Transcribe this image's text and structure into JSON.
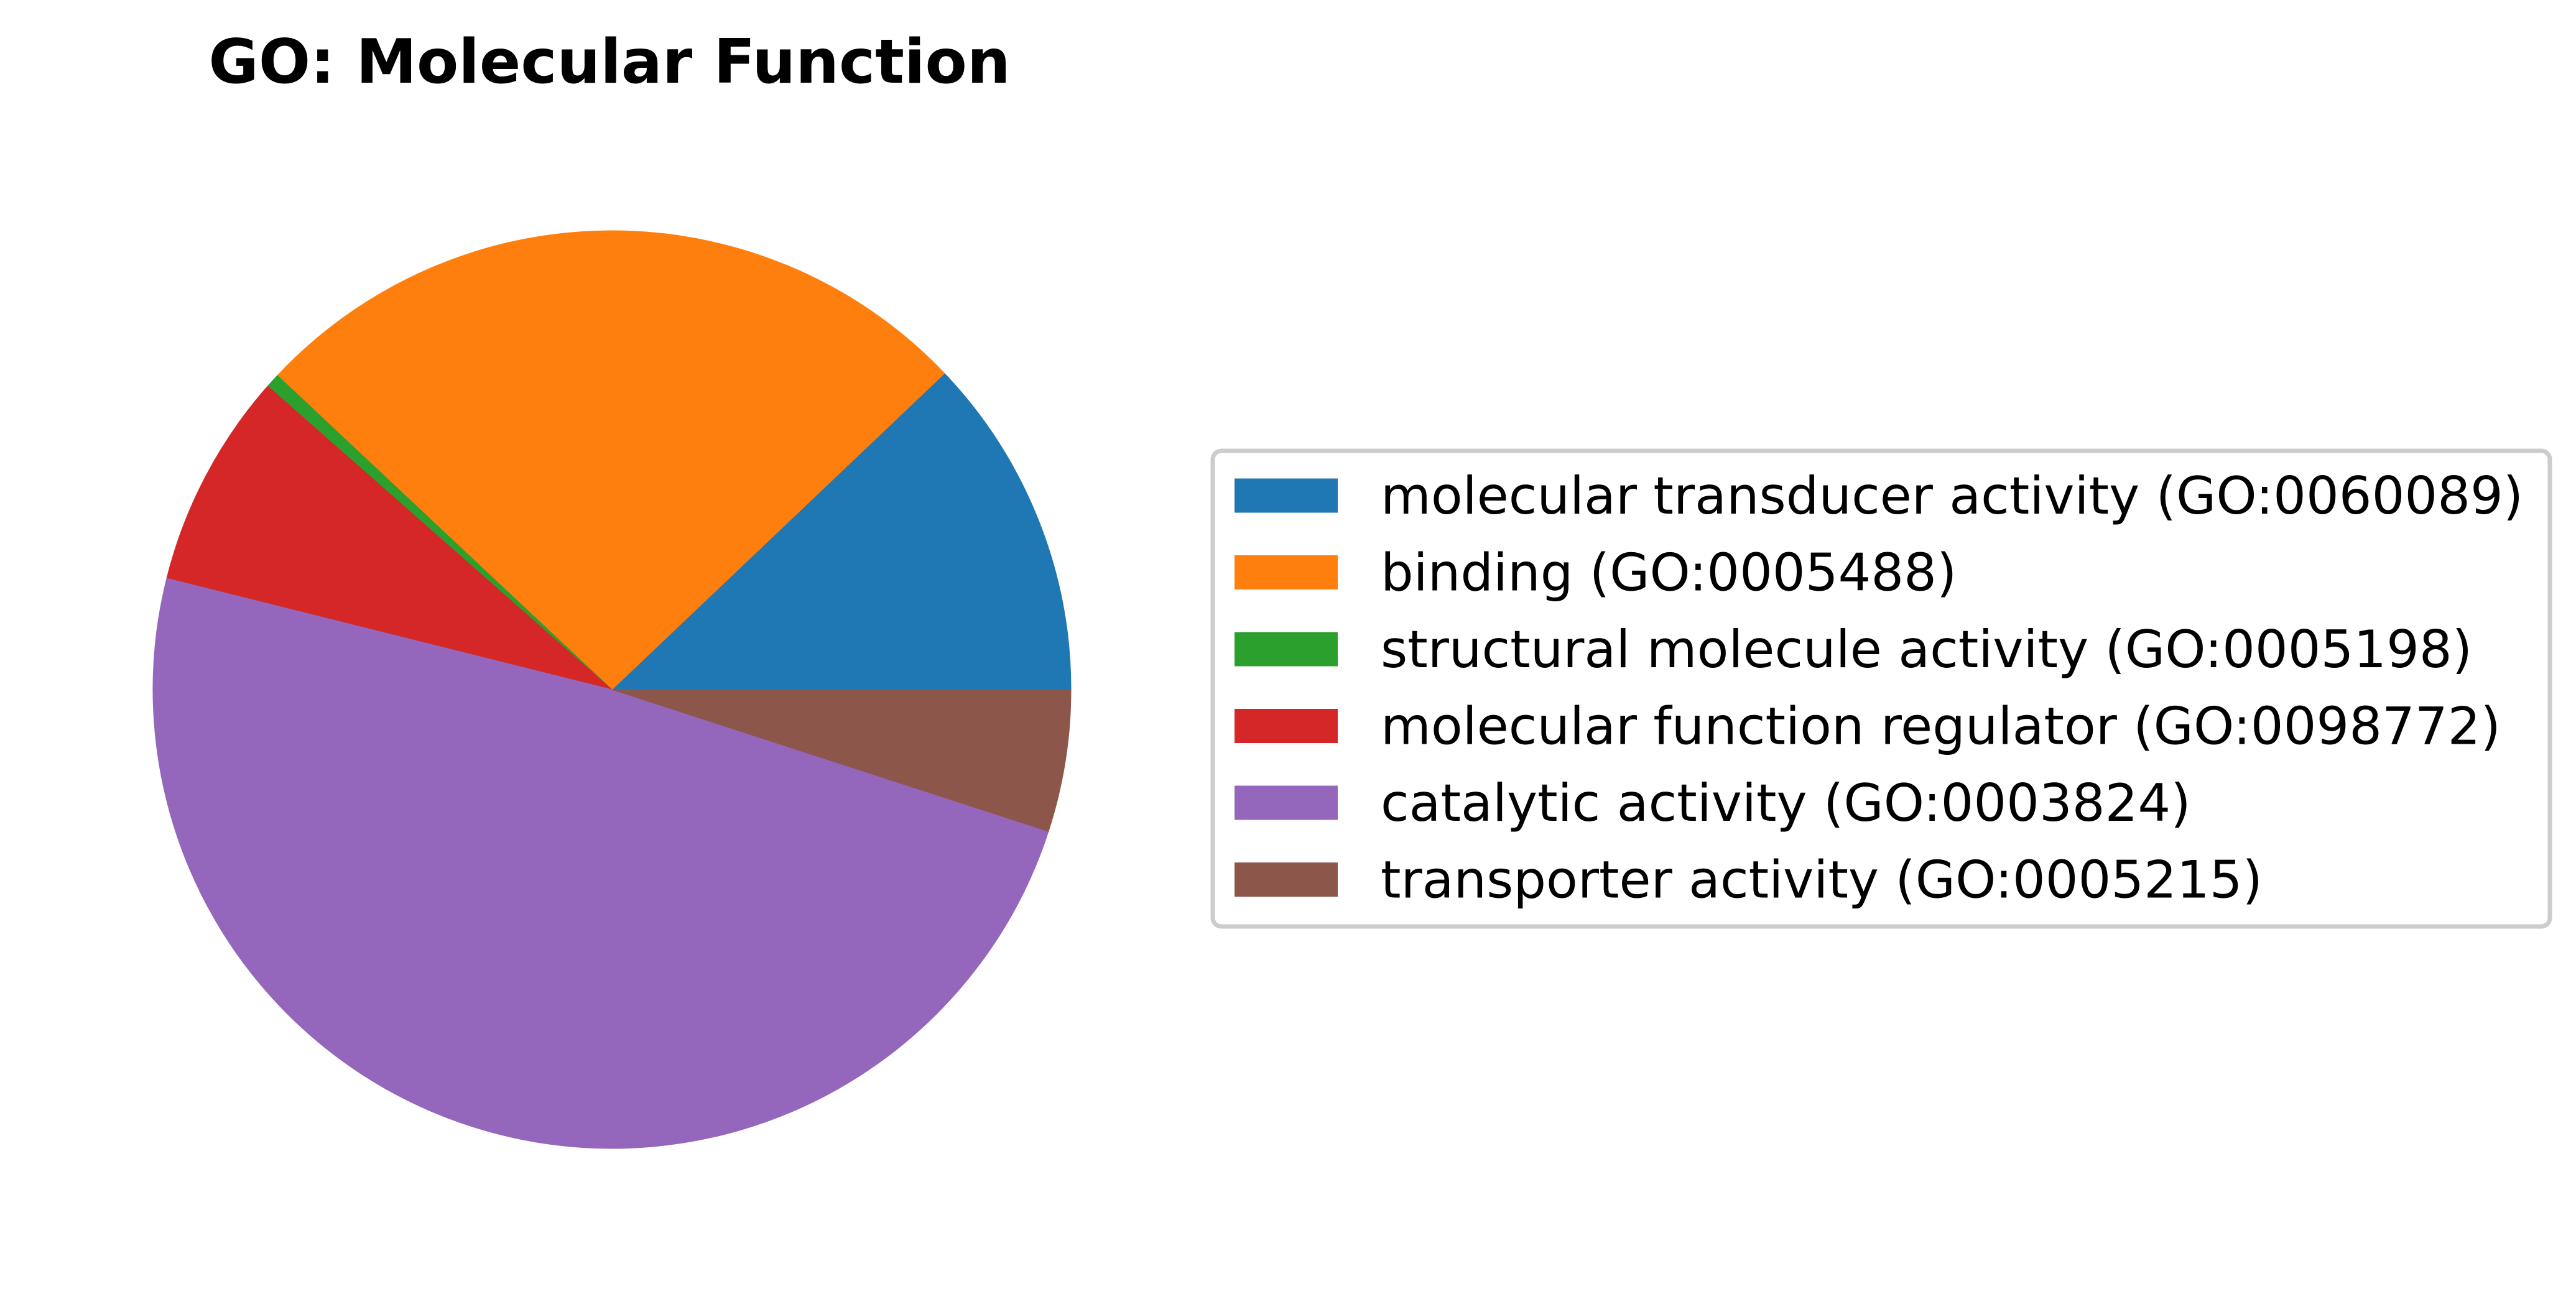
{
  "chart_data": {
    "type": "pie",
    "title": "GO: Molecular Function",
    "start_angle": 0,
    "direction": "counterclockwise",
    "legend_position": "right",
    "slices": [
      {
        "label": "molecular transducer activity (GO:0060089)",
        "value": 12.1,
        "color": "#1f77b4"
      },
      {
        "label": "binding (GO:0005488)",
        "value": 25.9,
        "color": "#ff7f0e"
      },
      {
        "label": "structural molecule activity (GO:0005198)",
        "value": 0.5,
        "color": "#2ca02c"
      },
      {
        "label": "molecular function regulator (GO:0098772)",
        "value": 7.6,
        "color": "#d62728"
      },
      {
        "label": "catalytic activity (GO:0003824)",
        "value": 48.9,
        "color": "#9467bd"
      },
      {
        "label": "transporter activity (GO:0005215)",
        "value": 5.0,
        "color": "#8c564b"
      }
    ]
  }
}
